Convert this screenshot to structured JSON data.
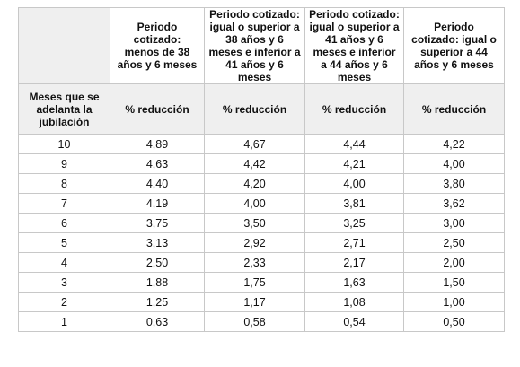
{
  "header": {
    "col1": "",
    "col2": "Periodo cotizado: menos de 38 años y 6 meses",
    "col3": "Periodo cotizado: igual o superior a 38 años y 6 meses e inferior a 41 años y 6 meses",
    "col4": "Periodo cotizado: igual o superior a 41 años y 6 meses e inferior a 44 años y 6 meses",
    "col5": "Periodo cotizado: igual o superior a 44 años y 6 meses"
  },
  "subheader": {
    "col1": "Meses que se adelanta la jubilación",
    "col2": "% reducción",
    "col3": "% reducción",
    "col4": "% reducción",
    "col5": "% reducción"
  },
  "rows": [
    [
      "10",
      "4,89",
      "4,67",
      "4,44",
      "4,22"
    ],
    [
      "9",
      "4,63",
      "4,42",
      "4,21",
      "4,00"
    ],
    [
      "8",
      "4,40",
      "4,20",
      "4,00",
      "3,80"
    ],
    [
      "7",
      "4,19",
      "4,00",
      "3,81",
      "3,62"
    ],
    [
      "6",
      "3,75",
      "3,50",
      "3,25",
      "3,00"
    ],
    [
      "5",
      "3,13",
      "2,92",
      "2,71",
      "2,50"
    ],
    [
      "4",
      "2,50",
      "2,33",
      "2,17",
      "2,00"
    ],
    [
      "3",
      "1,88",
      "1,75",
      "1,63",
      "1,50"
    ],
    [
      "2",
      "1,25",
      "1,17",
      "1,08",
      "1,00"
    ],
    [
      "1",
      "0,63",
      "0,58",
      "0,54",
      "0,50"
    ]
  ]
}
